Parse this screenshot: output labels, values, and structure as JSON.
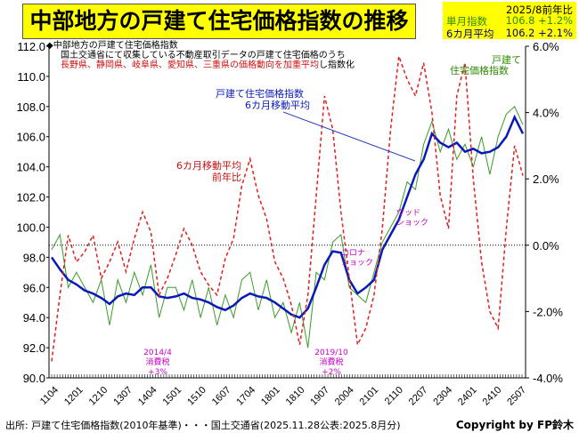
{
  "title": "中部地方の戸建て住宅価格指数の推移",
  "stats": {
    "header": "2025/8前年比",
    "single_label": "単月指数",
    "single_value": "106.8 +1.2%",
    "avg_label": "6カ月平均",
    "avg_value": "106.2 +2.1%",
    "single_color": "#2e8b00",
    "avg_color": "#00008b"
  },
  "notes": {
    "line1": "◆中部地方の戸建て住宅価格指数",
    "line2": "国土交通省にて収集している不動産取引データの戸建て住宅価格のうち",
    "line3_red": "長野県、静岡県、岐阜県、愛知県、三重県の価格動向を加重平均",
    "line3_rest": "し指数化"
  },
  "annotations": {
    "green_label_1": "戸建て",
    "green_label_2": "住宅価格指数",
    "blue_label_1": "戸建て住宅価格指数",
    "blue_label_2": "6カ月移動平均",
    "red_label_1": "6カ月移動平均",
    "red_label_2": "前年比",
    "wood_1": "ウッド",
    "wood_2": "ショック",
    "corona_1": "コロナ",
    "corona_2": "ショック",
    "tax2014_1": "2014/4",
    "tax2014_2": "消費税",
    "tax2014_3": "+3%",
    "tax2019_1": "2019/10",
    "tax2019_2": "消費税",
    "tax2019_3": "+2%"
  },
  "footer": "出所: 戸建て住宅価格指数(2010年基準)・・・国土交通省(2025.11.28公表:2025.8月分)",
  "copyright": "Copyright by FP鈴木",
  "chart_data": {
    "type": "line",
    "x_start": "2011/4",
    "x_end": "2025/8",
    "sampling": "quarterly (approx.)",
    "x_tick_labels": [
      "1104",
      "1201",
      "1210",
      "1307",
      "1404",
      "1501",
      "1510",
      "1607",
      "1704",
      "1801",
      "1810",
      "1907",
      "2004",
      "2101",
      "2110",
      "2207",
      "2304",
      "2401",
      "2410",
      "2507"
    ],
    "left_axis": {
      "ylim": [
        90,
        112
      ],
      "ticks": [
        "112.0",
        "110.0",
        "108.0",
        "106.0",
        "104.0",
        "102.0",
        "100.0",
        "98.0",
        "96.0",
        "94.0",
        "92.0",
        "90.0"
      ]
    },
    "right_axis": {
      "ylim": [
        -4,
        6
      ],
      "ticks": [
        "6.0%",
        "4.0%",
        "2.0%",
        "0.0%",
        "-2.0%",
        "-4.0%"
      ]
    },
    "series": [
      {
        "name": "戸建て住宅価格指数",
        "axis": "left",
        "color": "#3a9a2a",
        "values": [
          98.5,
          99.5,
          96,
          97,
          96,
          95,
          96.5,
          93.5,
          96.5,
          95,
          97,
          95.5,
          97.5,
          94,
          96,
          96,
          94.5,
          96.5,
          94,
          96,
          93.5,
          95.5,
          94,
          96.5,
          97,
          94.5,
          96.5,
          94,
          95,
          93,
          95,
          92,
          97,
          96.5,
          99,
          99.5,
          96,
          95.5,
          95,
          97,
          99,
          100,
          101,
          103,
          102.5,
          105.5,
          107,
          105,
          106.5,
          104.5,
          105.5,
          104,
          106,
          103.5,
          106,
          107.5,
          108,
          106.8
        ]
      },
      {
        "name": "戸建て住宅価格指数 6カ月移動平均",
        "axis": "left",
        "color": "#0a1ab8",
        "values": [
          98.0,
          97.2,
          96.5,
          96.2,
          95.8,
          95.6,
          95.3,
          94.9,
          95.4,
          95.6,
          95.5,
          96.0,
          96.0,
          95.4,
          95.3,
          95.4,
          95.6,
          95.3,
          95.2,
          95.0,
          94.7,
          94.5,
          94.8,
          95.3,
          95.6,
          95.4,
          95.3,
          95.0,
          94.6,
          94.2,
          94.0,
          94.6,
          96.0,
          97.5,
          98.4,
          98.3,
          96.5,
          95.6,
          96.0,
          96.5,
          98.5,
          99.5,
          100.5,
          102.0,
          103.5,
          104.5,
          106.2,
          105.6,
          105.3,
          105.6,
          105.0,
          105.2,
          104.9,
          105.0,
          105.3,
          106.0,
          107.3,
          106.2
        ]
      },
      {
        "name": "6カ月移動平均 前年比",
        "axis": "right",
        "color": "#e02020",
        "values": [
          -3.5,
          -1.5,
          0.3,
          -0.5,
          -0.2,
          0.3,
          -1.0,
          -0.5,
          0.1,
          -0.8,
          0.2,
          1.0,
          0.4,
          -1.5,
          -1.0,
          -0.3,
          0.5,
          0.0,
          -0.8,
          -1.2,
          -1.5,
          -0.4,
          0.2,
          1.8,
          2.6,
          1.5,
          0.8,
          -0.5,
          -1.0,
          -1.8,
          -3.0,
          -1.5,
          1.5,
          4.5,
          3.5,
          1.0,
          -1.0,
          -3.0,
          -2.5,
          -1.5,
          0.5,
          3.5,
          5.7,
          5.0,
          4.5,
          5.5,
          4.0,
          1.5,
          0.5,
          4.5,
          5.5,
          2.0,
          -0.5,
          -2.0,
          -2.5,
          0.5,
          3.0,
          2.1
        ]
      }
    ]
  }
}
